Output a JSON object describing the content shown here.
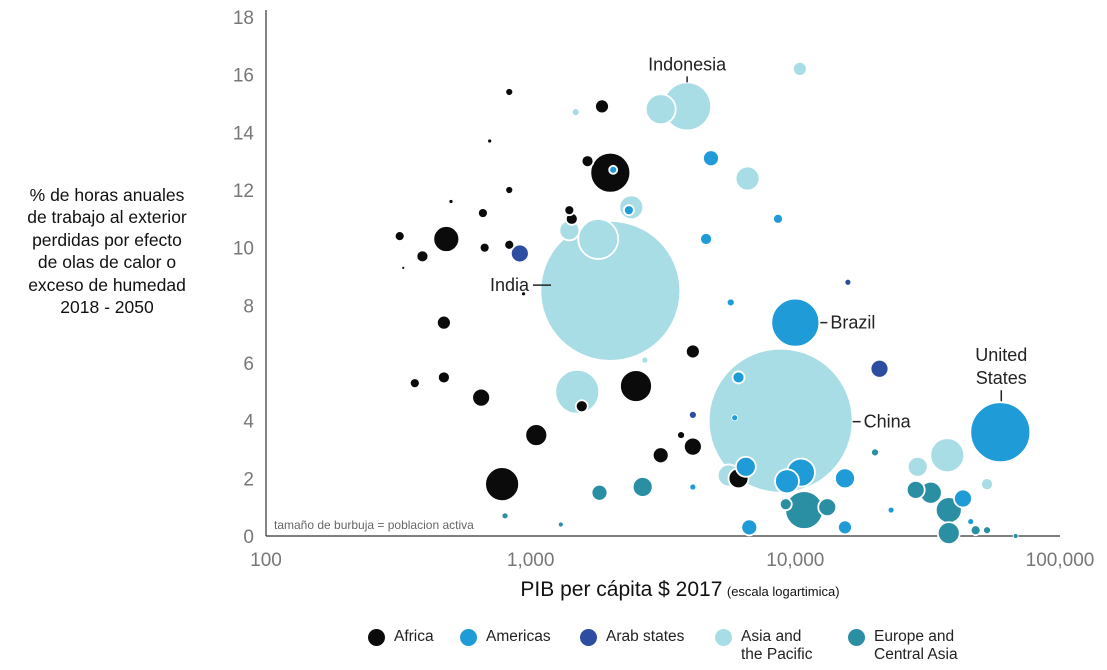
{
  "chart_data": {
    "type": "scatter",
    "subtype": "bubble",
    "x_scale": "log",
    "xlim": [
      100,
      100000
    ],
    "ylim": [
      0,
      18
    ],
    "x_ticks": [
      {
        "value": 100,
        "label": "100"
      },
      {
        "value": 1000,
        "label": "1,000"
      },
      {
        "value": 10000,
        "label": "10,000"
      },
      {
        "value": 100000,
        "label": "100,000"
      }
    ],
    "y_ticks": [
      0,
      2,
      4,
      6,
      8,
      10,
      12,
      14,
      16,
      18
    ],
    "ylabel_lines": [
      "% de horas anuales",
      "de trabajo al exterior",
      "perdidas por efecto",
      "de olas de calor o",
      "exceso de humedad",
      "2018 - 2050"
    ],
    "xlabel": "PIB per cápita  $ 2017",
    "xlabel_note": "(escala logartimica)",
    "size_note": "tamaño de burbuja = poblacion activa",
    "colors": {
      "Africa": "#0b0b0c",
      "Americas": "#1f9bd7",
      "Arab states": "#2d4ea0",
      "Asia and the Pacific": "#a9dde5",
      "Europe and Central Asia": "#2a8fa3"
    },
    "legend": [
      {
        "region": "Africa",
        "lines": [
          "Africa"
        ]
      },
      {
        "region": "Americas",
        "lines": [
          "Americas"
        ]
      },
      {
        "region": "Arab states",
        "lines": [
          "Arab states"
        ]
      },
      {
        "region": "Asia and the Pacific",
        "lines": [
          "Asia and",
          "the Pacific"
        ]
      },
      {
        "region": "Europe and Central Asia",
        "lines": [
          "Europe and",
          "Central Asia"
        ]
      }
    ],
    "annotations": [
      {
        "lines": [
          "Indonesia"
        ],
        "x": 3900,
        "y": 14.9
      },
      {
        "lines": [
          "India"
        ],
        "x": 2000,
        "y": 8.7
      },
      {
        "lines": [
          "Brazil"
        ],
        "x": 10000,
        "y": 7.4
      },
      {
        "lines": [
          "China"
        ],
        "x": 8800,
        "y": 4.0
      },
      {
        "lines": [
          "United",
          "States"
        ],
        "x": 60000,
        "y": 3.6
      }
    ],
    "series": [
      {
        "region": "Asia and the Pacific",
        "points": [
          {
            "x": 2000,
            "y": 8.5,
            "r": 70
          },
          {
            "x": 8800,
            "y": 4.0,
            "r": 72
          },
          {
            "x": 3900,
            "y": 14.9,
            "r": 24
          },
          {
            "x": 3100,
            "y": 14.8,
            "r": 15
          },
          {
            "x": 1800,
            "y": 10.3,
            "r": 20
          },
          {
            "x": 1500,
            "y": 5.0,
            "r": 22
          },
          {
            "x": 6600,
            "y": 12.4,
            "r": 12
          },
          {
            "x": 2400,
            "y": 11.4,
            "r": 12
          },
          {
            "x": 1400,
            "y": 10.6,
            "r": 10
          },
          {
            "x": 10400,
            "y": 16.2,
            "r": 7
          },
          {
            "x": 37500,
            "y": 2.8,
            "r": 17
          },
          {
            "x": 29000,
            "y": 2.4,
            "r": 10
          },
          {
            "x": 5600,
            "y": 2.1,
            "r": 11
          },
          {
            "x": 53000,
            "y": 1.8,
            "r": 6
          },
          {
            "x": 1480,
            "y": 14.7,
            "r": 4
          },
          {
            "x": 2700,
            "y": 6.1,
            "r": 3
          }
        ]
      },
      {
        "region": "Africa",
        "points": [
          {
            "x": 2000,
            "y": 12.6,
            "r": 20
          },
          {
            "x": 480,
            "y": 10.3,
            "r": 13
          },
          {
            "x": 2500,
            "y": 5.2,
            "r": 16
          },
          {
            "x": 780,
            "y": 1.8,
            "r": 17
          },
          {
            "x": 1050,
            "y": 3.5,
            "r": 11
          },
          {
            "x": 650,
            "y": 4.8,
            "r": 9
          },
          {
            "x": 4100,
            "y": 3.1,
            "r": 9
          },
          {
            "x": 4100,
            "y": 6.4,
            "r": 7
          },
          {
            "x": 3100,
            "y": 2.8,
            "r": 8
          },
          {
            "x": 6100,
            "y": 2.0,
            "r": 10
          },
          {
            "x": 1560,
            "y": 4.5,
            "r": 6
          },
          {
            "x": 1860,
            "y": 14.9,
            "r": 7
          },
          {
            "x": 1640,
            "y": 13.0,
            "r": 6
          },
          {
            "x": 1400,
            "y": 11.3,
            "r": 5
          },
          {
            "x": 1430,
            "y": 11.0,
            "r": 6
          },
          {
            "x": 470,
            "y": 7.4,
            "r": 7
          },
          {
            "x": 470,
            "y": 5.5,
            "r": 6
          },
          {
            "x": 365,
            "y": 5.3,
            "r": 5
          },
          {
            "x": 390,
            "y": 9.7,
            "r": 6
          },
          {
            "x": 320,
            "y": 10.4,
            "r": 5
          },
          {
            "x": 660,
            "y": 11.2,
            "r": 5
          },
          {
            "x": 670,
            "y": 10.0,
            "r": 5
          },
          {
            "x": 830,
            "y": 10.1,
            "r": 5
          },
          {
            "x": 830,
            "y": 12.0,
            "r": 4
          },
          {
            "x": 830,
            "y": 15.4,
            "r": 4
          },
          {
            "x": 3700,
            "y": 3.5,
            "r": 4
          },
          {
            "x": 700,
            "y": 13.7,
            "r": 2
          },
          {
            "x": 500,
            "y": 11.6,
            "r": 2
          },
          {
            "x": 330,
            "y": 9.3,
            "r": 1.5
          },
          {
            "x": 940,
            "y": 8.4,
            "r": 2
          }
        ]
      },
      {
        "region": "Americas",
        "points": [
          {
            "x": 59500,
            "y": 3.6,
            "r": 30
          },
          {
            "x": 10000,
            "y": 7.4,
            "r": 24
          },
          {
            "x": 10500,
            "y": 2.2,
            "r": 14
          },
          {
            "x": 9300,
            "y": 1.9,
            "r": 12
          },
          {
            "x": 6500,
            "y": 2.4,
            "r": 10
          },
          {
            "x": 15400,
            "y": 2.0,
            "r": 10
          },
          {
            "x": 4800,
            "y": 13.1,
            "r": 8
          },
          {
            "x": 6700,
            "y": 0.3,
            "r": 8
          },
          {
            "x": 15400,
            "y": 0.3,
            "r": 7
          },
          {
            "x": 43000,
            "y": 1.3,
            "r": 9
          },
          {
            "x": 4600,
            "y": 10.3,
            "r": 6
          },
          {
            "x": 6100,
            "y": 5.5,
            "r": 6
          },
          {
            "x": 2350,
            "y": 11.3,
            "r": 5
          },
          {
            "x": 8600,
            "y": 11.0,
            "r": 5
          },
          {
            "x": 5700,
            "y": 8.1,
            "r": 4
          },
          {
            "x": 2050,
            "y": 12.7,
            "r": 4
          },
          {
            "x": 4100,
            "y": 1.7,
            "r": 3
          },
          {
            "x": 5900,
            "y": 4.1,
            "r": 3
          },
          {
            "x": 46000,
            "y": 0.5,
            "r": 3
          },
          {
            "x": 23000,
            "y": 0.9,
            "r": 3
          }
        ]
      },
      {
        "region": "Arab states",
        "points": [
          {
            "x": 20800,
            "y": 5.8,
            "r": 9
          },
          {
            "x": 910,
            "y": 9.8,
            "r": 9
          },
          {
            "x": 4100,
            "y": 4.2,
            "r": 4
          },
          {
            "x": 15800,
            "y": 8.8,
            "r": 3
          }
        ]
      },
      {
        "region": "Europe and Central Asia",
        "points": [
          {
            "x": 10800,
            "y": 0.9,
            "r": 19
          },
          {
            "x": 38000,
            "y": 0.9,
            "r": 13
          },
          {
            "x": 38000,
            "y": 0.1,
            "r": 11
          },
          {
            "x": 32500,
            "y": 1.5,
            "r": 11
          },
          {
            "x": 2650,
            "y": 1.7,
            "r": 10
          },
          {
            "x": 13200,
            "y": 1.0,
            "r": 9
          },
          {
            "x": 28500,
            "y": 1.6,
            "r": 9
          },
          {
            "x": 1820,
            "y": 1.5,
            "r": 8
          },
          {
            "x": 9200,
            "y": 1.1,
            "r": 6
          },
          {
            "x": 20000,
            "y": 2.9,
            "r": 4
          },
          {
            "x": 53000,
            "y": 0.2,
            "r": 4
          },
          {
            "x": 48000,
            "y": 0.2,
            "r": 5
          },
          {
            "x": 1300,
            "y": 0.4,
            "r": 2.5
          },
          {
            "x": 800,
            "y": 0.7,
            "r": 3
          },
          {
            "x": 68000,
            "y": 0.0,
            "r": 2.5
          }
        ]
      }
    ]
  }
}
